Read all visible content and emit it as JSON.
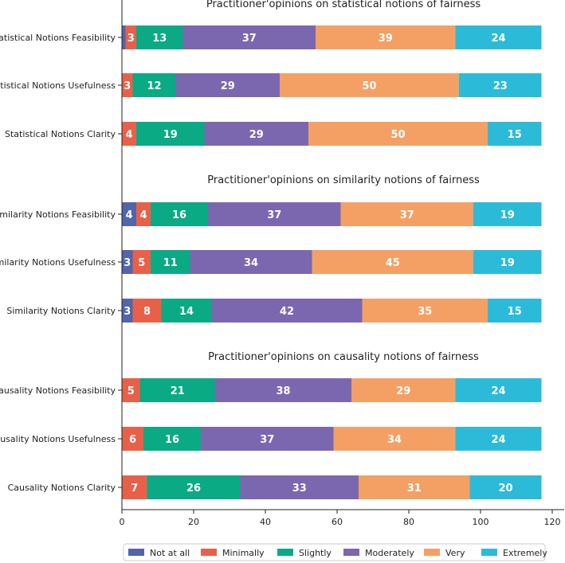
{
  "chart_data": {
    "type": "bar",
    "orientation": "horizontal",
    "stacked": true,
    "legend_position": "bottom",
    "xlim": [
      0,
      120
    ],
    "xticks": [
      0,
      20,
      40,
      60,
      80,
      100,
      120
    ],
    "grid": false,
    "colors": {
      "Not at all": "#5165a8",
      "Minimally": "#e9604a",
      "Slightly": "#0aaa84",
      "Moderately": "#7b67b0",
      "Very": "#f4a065",
      "Extremely": "#2bbbd8"
    },
    "series_names": [
      "Not at all",
      "Minimally",
      "Slightly",
      "Moderately",
      "Very",
      "Extremely"
    ],
    "panels": [
      {
        "title": "Practitioner'opinions on statistical notions of fairness",
        "categories": [
          "Statistical Notions Feasibility",
          "Statistical Notions Usefulness",
          "Statistical Notions Clarity"
        ],
        "values": [
          [
            1,
            3,
            13,
            37,
            39,
            24
          ],
          [
            0,
            3,
            12,
            29,
            50,
            23
          ],
          [
            0,
            4,
            19,
            29,
            50,
            15
          ]
        ]
      },
      {
        "title": "Practitioner'opinions on similarity notions of fairness",
        "categories": [
          "Similarity Notions Feasibility",
          "Similarity Notions Usefulness",
          "Similarity Notions Clarity"
        ],
        "values": [
          [
            4,
            4,
            16,
            37,
            37,
            19
          ],
          [
            3,
            5,
            11,
            34,
            45,
            19
          ],
          [
            3,
            8,
            14,
            42,
            35,
            15
          ]
        ]
      },
      {
        "title": "Practitioner'opinions on causality notions of fairness",
        "categories": [
          "Causality Notions Feasibility",
          "Causality Notions Usefulness",
          "Causality Notions Clarity"
        ],
        "values": [
          [
            0,
            5,
            21,
            38,
            29,
            24
          ],
          [
            0,
            6,
            16,
            37,
            34,
            24
          ],
          [
            0,
            7,
            26,
            33,
            31,
            20
          ]
        ]
      }
    ]
  }
}
